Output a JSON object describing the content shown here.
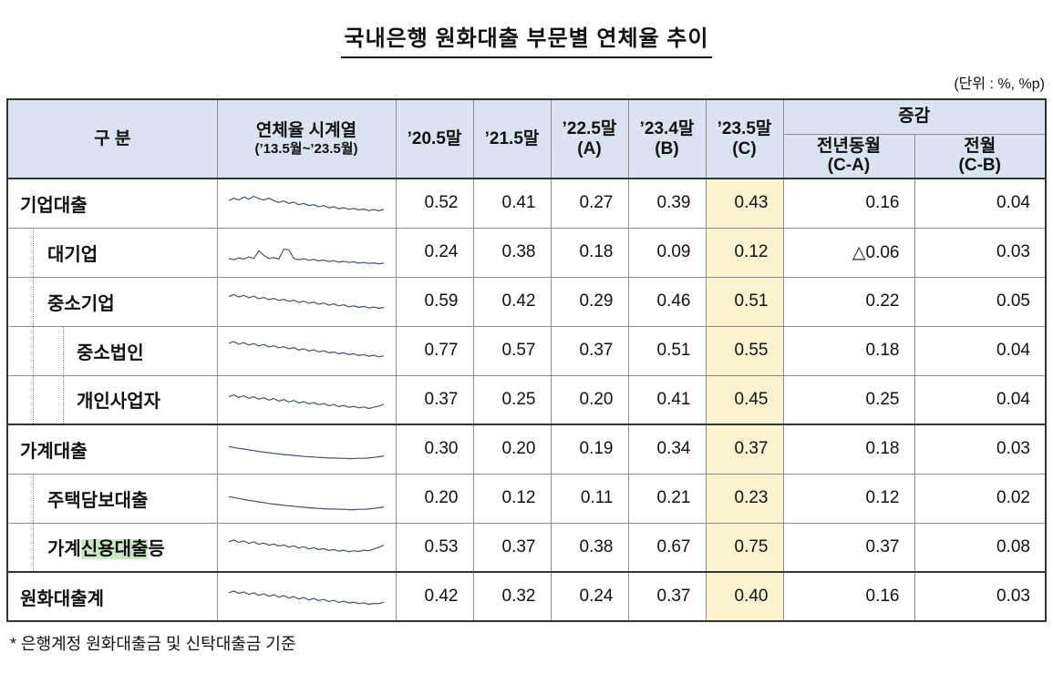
{
  "title": "국내은행 원화대출 부문별 연체율 추이",
  "unit_note": "(단위 : %, %p)",
  "footnote": "* 은행계정 원화대출금 및 신탁대출금 기준",
  "colors": {
    "header_bg": "#dae3f1",
    "highlight_col_bg": "#fdf2d0",
    "mark_bg": "#c9e9c5",
    "spark_line": "#44546a",
    "grid_strong": "#333333",
    "grid_light": "#8c8c8c"
  },
  "table": {
    "columns": {
      "category": "구  분",
      "series_title": "연체율 시계열",
      "series_range": "(’13.5월~’23.5월)",
      "p1": "’20.5말",
      "p2": "’21.5말",
      "p3_line1": "’22.5말",
      "p3_line2": "(A)",
      "p4_line1": "’23.4말",
      "p4_line2": "(B)",
      "p5_line1": "’23.5말",
      "p5_line2": "(C)",
      "change": "증감",
      "yoy_line1": "전년동월",
      "yoy_line2": "(C-A)",
      "mom_line1": "전월",
      "mom_line2": "(C-B)"
    },
    "rows": [
      {
        "label_parts": [
          {
            "text": "기업대출"
          }
        ],
        "indent": 0,
        "group_start": false,
        "values": [
          "0.52",
          "0.41",
          "0.27",
          "0.39",
          "0.43",
          "0.16",
          "0.04"
        ],
        "spark": [
          0.58,
          0.66,
          0.6,
          0.7,
          0.63,
          0.72,
          0.65,
          0.6,
          0.66,
          0.58,
          0.52,
          0.57,
          0.49,
          0.53,
          0.45,
          0.49,
          0.42,
          0.45,
          0.38,
          0.42,
          0.35,
          0.38,
          0.32,
          0.35,
          0.3,
          0.33,
          0.28,
          0.31,
          0.26,
          0.29,
          0.25,
          0.3
        ]
      },
      {
        "label_parts": [
          {
            "text": "대기업"
          }
        ],
        "indent": 1,
        "group_start": false,
        "values": [
          "0.24",
          "0.38",
          "0.18",
          "0.09",
          "0.12",
          "△0.06",
          "0.03"
        ],
        "spark": [
          0.3,
          0.26,
          0.32,
          0.28,
          0.35,
          0.3,
          0.55,
          0.4,
          0.3,
          0.33,
          0.28,
          0.6,
          0.58,
          0.3,
          0.26,
          0.29,
          0.24,
          0.27,
          0.22,
          0.25,
          0.2,
          0.23,
          0.18,
          0.21,
          0.17,
          0.19,
          0.15,
          0.17,
          0.14,
          0.16,
          0.13,
          0.15
        ]
      },
      {
        "label_parts": [
          {
            "text": "중소기업"
          }
        ],
        "indent": 1,
        "group_start": false,
        "values": [
          "0.59",
          "0.42",
          "0.29",
          "0.46",
          "0.51",
          "0.22",
          "0.05"
        ],
        "spark": [
          0.66,
          0.72,
          0.64,
          0.7,
          0.62,
          0.67,
          0.59,
          0.63,
          0.56,
          0.6,
          0.53,
          0.57,
          0.5,
          0.54,
          0.47,
          0.51,
          0.44,
          0.48,
          0.41,
          0.45,
          0.38,
          0.42,
          0.36,
          0.39,
          0.33,
          0.36,
          0.31,
          0.34,
          0.29,
          0.32,
          0.28,
          0.31
        ]
      },
      {
        "label_parts": [
          {
            "text": "중소법인"
          }
        ],
        "indent": 2,
        "group_start": false,
        "values": [
          "0.77",
          "0.57",
          "0.37",
          "0.51",
          "0.55",
          "0.18",
          "0.04"
        ],
        "spark": [
          0.74,
          0.79,
          0.71,
          0.76,
          0.68,
          0.73,
          0.65,
          0.7,
          0.62,
          0.66,
          0.59,
          0.63,
          0.56,
          0.6,
          0.52,
          0.56,
          0.49,
          0.53,
          0.46,
          0.5,
          0.43,
          0.46,
          0.4,
          0.43,
          0.37,
          0.4,
          0.34,
          0.37,
          0.32,
          0.35,
          0.3,
          0.33
        ]
      },
      {
        "label_parts": [
          {
            "text": "개인사업자"
          }
        ],
        "indent": 2,
        "group_start": false,
        "values": [
          "0.37",
          "0.25",
          "0.20",
          "0.41",
          "0.45",
          "0.25",
          "0.04"
        ],
        "spark": [
          0.6,
          0.66,
          0.58,
          0.63,
          0.55,
          0.6,
          0.52,
          0.57,
          0.49,
          0.54,
          0.46,
          0.51,
          0.43,
          0.48,
          0.4,
          0.44,
          0.37,
          0.41,
          0.34,
          0.38,
          0.31,
          0.35,
          0.28,
          0.32,
          0.26,
          0.29,
          0.24,
          0.27,
          0.22,
          0.26,
          0.3,
          0.36
        ]
      },
      {
        "label_parts": [
          {
            "text": "가계대출"
          }
        ],
        "indent": 0,
        "group_start": true,
        "values": [
          "0.30",
          "0.20",
          "0.19",
          "0.34",
          "0.37",
          "0.18",
          "0.03"
        ],
        "spark": [
          0.58,
          0.55,
          0.52,
          0.5,
          0.47,
          0.45,
          0.42,
          0.4,
          0.38,
          0.36,
          0.34,
          0.32,
          0.31,
          0.29,
          0.28,
          0.26,
          0.25,
          0.24,
          0.23,
          0.22,
          0.21,
          0.21,
          0.2,
          0.2,
          0.19,
          0.19,
          0.2,
          0.2,
          0.21,
          0.23,
          0.25,
          0.28
        ]
      },
      {
        "label_parts": [
          {
            "text": "주택담보대출"
          }
        ],
        "indent": 1,
        "group_start": false,
        "values": [
          "0.20",
          "0.12",
          "0.11",
          "0.21",
          "0.23",
          "0.12",
          "0.02"
        ],
        "spark": [
          0.55,
          0.52,
          0.49,
          0.46,
          0.43,
          0.41,
          0.38,
          0.36,
          0.33,
          0.31,
          0.29,
          0.27,
          0.25,
          0.24,
          0.22,
          0.21,
          0.19,
          0.18,
          0.17,
          0.16,
          0.15,
          0.15,
          0.14,
          0.14,
          0.13,
          0.13,
          0.14,
          0.14,
          0.15,
          0.17,
          0.19,
          0.22
        ]
      },
      {
        "label_parts": [
          {
            "text": "가계"
          },
          {
            "text": "신용대출",
            "mark": true
          },
          {
            "text": "등"
          }
        ],
        "indent": 1,
        "group_start": false,
        "values": [
          "0.53",
          "0.37",
          "0.38",
          "0.67",
          "0.75",
          "0.37",
          "0.08"
        ],
        "spark": [
          0.68,
          0.74,
          0.66,
          0.71,
          0.63,
          0.68,
          0.6,
          0.64,
          0.57,
          0.61,
          0.54,
          0.58,
          0.51,
          0.55,
          0.48,
          0.52,
          0.45,
          0.49,
          0.43,
          0.46,
          0.4,
          0.43,
          0.38,
          0.41,
          0.36,
          0.39,
          0.37,
          0.41,
          0.39,
          0.45,
          0.5,
          0.57
        ]
      },
      {
        "label_parts": [
          {
            "text": "원화대출계"
          }
        ],
        "indent": 0,
        "group_start": true,
        "values": [
          "0.42",
          "0.32",
          "0.24",
          "0.37",
          "0.40",
          "0.16",
          "0.03"
        ],
        "spark": [
          0.62,
          0.68,
          0.6,
          0.65,
          0.57,
          0.62,
          0.54,
          0.59,
          0.51,
          0.56,
          0.48,
          0.53,
          0.45,
          0.5,
          0.42,
          0.47,
          0.39,
          0.44,
          0.37,
          0.41,
          0.34,
          0.38,
          0.31,
          0.35,
          0.29,
          0.32,
          0.27,
          0.3,
          0.25,
          0.28,
          0.27,
          0.32
        ]
      }
    ]
  }
}
